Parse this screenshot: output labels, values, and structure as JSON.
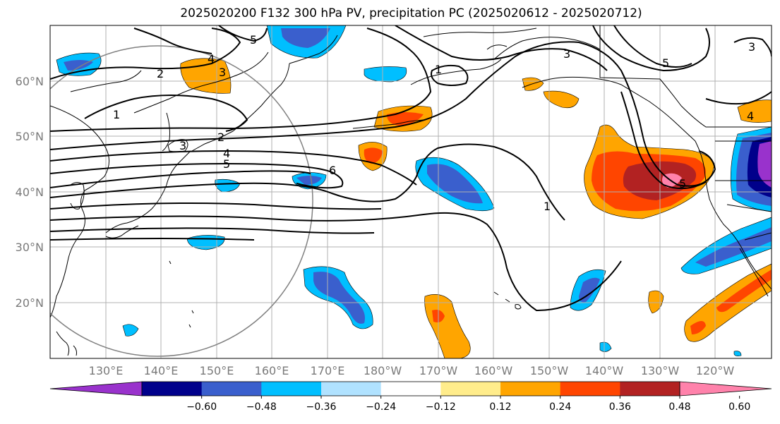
{
  "title": "2025020200 F132 300 hPa PV, precipitation PC (2025020612 - 2025020712)",
  "latitude_labels": [
    "60°N",
    "50°N",
    "40°N",
    "30°N",
    "20°N"
  ],
  "longitude_labels": [
    "130°E",
    "140°E",
    "150°E",
    "160°E",
    "170°E",
    "180°W",
    "170°W",
    "160°W",
    "150°W",
    "140°W",
    "130°W",
    "120°W"
  ],
  "colorbar": {
    "ticks": [
      "−0.60",
      "−0.48",
      "−0.36",
      "−0.24",
      "−0.12",
      "0.12",
      "0.24",
      "0.36",
      "0.48",
      "0.60"
    ],
    "colors": [
      "#9932cc",
      "#00008b",
      "#3a5fcd",
      "#00bfff",
      "#b0e2ff",
      "#ffffff",
      "#ffec8b",
      "#ffa500",
      "#ff4500",
      "#b22222",
      "#ff82ab"
    ]
  },
  "contour_labels": [
    "5",
    "4",
    "3",
    "2",
    "1",
    "2",
    "3",
    "4",
    "5",
    "6",
    "1",
    "3",
    "5",
    "1",
    "5",
    "4",
    "3"
  ]
}
